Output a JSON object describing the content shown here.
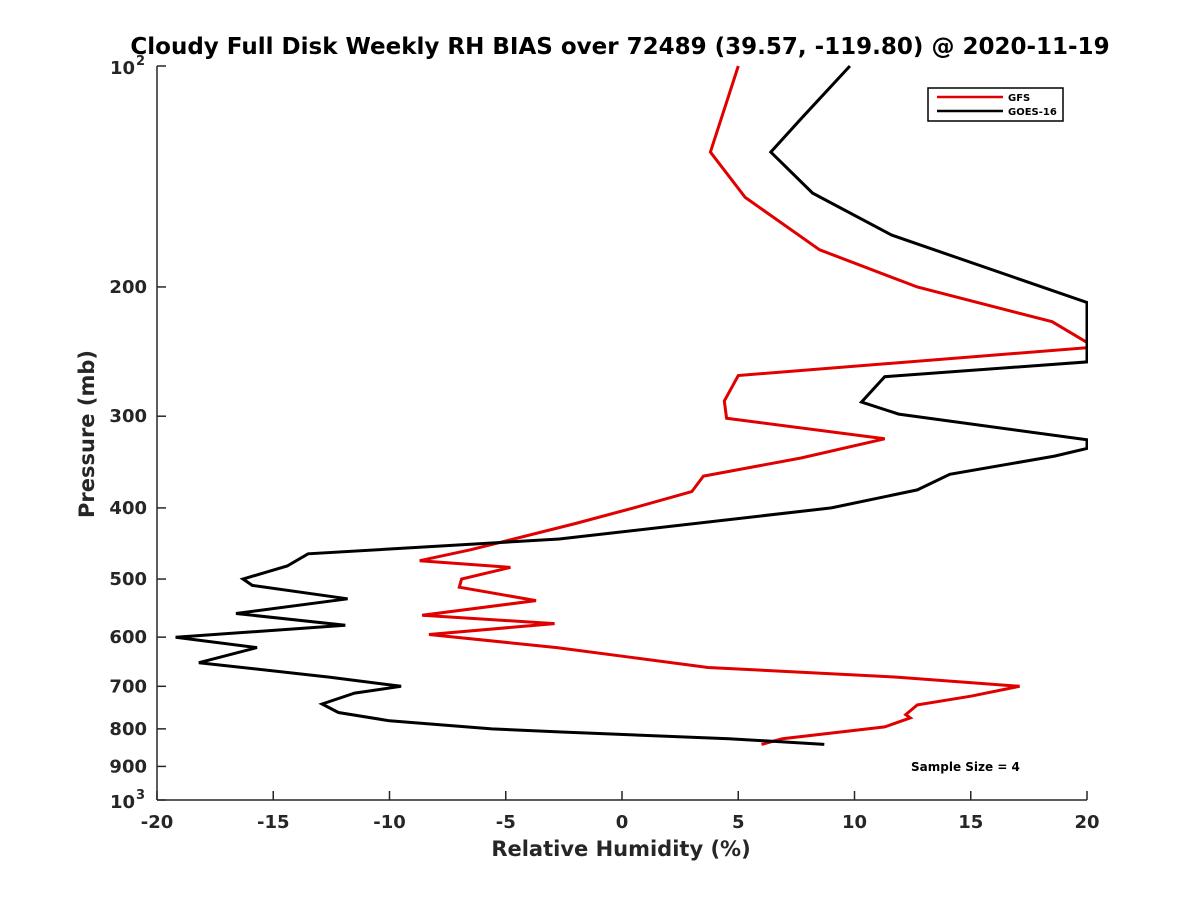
{
  "chart_data": {
    "type": "line",
    "title": "Cloudy Full Disk Weekly RH BIAS over 72489 (39.57, -119.80) @ 2020-11-19",
    "xlabel": "Relative Humidity (%)",
    "ylabel": "Pressure (mb)",
    "xlim": [
      -20,
      20
    ],
    "ylim": [
      100,
      1000
    ],
    "y_scale": "log",
    "y_reversed": true,
    "grid": false,
    "legend_position": "top-right",
    "annotation": "Sample Size = 4",
    "x_ticks": [
      -20,
      -15,
      -10,
      -5,
      0,
      5,
      10,
      15,
      20
    ],
    "x_tick_labels": [
      "-20",
      "-15",
      "-10",
      "-5",
      "0",
      "5",
      "10",
      "15",
      "20"
    ],
    "y_ticks": [
      200,
      300,
      400,
      500,
      600,
      700,
      800,
      900
    ],
    "y_tick_labels": [
      "200",
      "300",
      "400",
      "500",
      "600",
      "700",
      "800",
      "900"
    ],
    "y_minor_ticks": [
      100,
      1000
    ],
    "y_minor_tick_labels": [
      "10",
      "10"
    ],
    "y_minor_tick_exp": [
      "2",
      "3"
    ],
    "series": [
      {
        "name": "GFS",
        "color": "#e00000",
        "points": [
          [
            5.0,
            100
          ],
          [
            3.8,
            131
          ],
          [
            5.3,
            151
          ],
          [
            8.5,
            178
          ],
          [
            12.7,
            200
          ],
          [
            18.5,
            223
          ],
          [
            20.0,
            238
          ],
          [
            20.0,
            242
          ],
          [
            5.0,
            264
          ],
          [
            4.4,
            286
          ],
          [
            4.5,
            302
          ],
          [
            11.3,
            322
          ],
          [
            7.7,
            342
          ],
          [
            3.5,
            362
          ],
          [
            3.0,
            380
          ],
          [
            0.5,
            400
          ],
          [
            -2.0,
            420
          ],
          [
            -6.5,
            456
          ],
          [
            -8.7,
            472
          ],
          [
            -4.8,
            482
          ],
          [
            -6.9,
            500
          ],
          [
            -7.0,
            513
          ],
          [
            -3.7,
            535
          ],
          [
            -8.6,
            560
          ],
          [
            -2.9,
            575
          ],
          [
            -8.3,
            595
          ],
          [
            -2.8,
            620
          ],
          [
            0.5,
            640
          ],
          [
            3.7,
            660
          ],
          [
            11.8,
            680
          ],
          [
            17.1,
            700
          ],
          [
            15.0,
            722
          ],
          [
            12.7,
            742
          ],
          [
            12.2,
            765
          ],
          [
            12.4,
            773
          ],
          [
            11.3,
            795
          ],
          [
            6.9,
            825
          ],
          [
            6.0,
            840
          ]
        ]
      },
      {
        "name": "GOES-16",
        "color": "#000000",
        "points": [
          [
            9.8,
            100
          ],
          [
            7.7,
            118
          ],
          [
            6.4,
            131
          ],
          [
            8.2,
            149
          ],
          [
            11.6,
            170
          ],
          [
            20.0,
            210
          ],
          [
            20.0,
            218
          ],
          [
            20.0,
            248
          ],
          [
            20.0,
            253
          ],
          [
            11.3,
            265
          ],
          [
            10.3,
            287
          ],
          [
            11.9,
            298
          ],
          [
            20.0,
            323
          ],
          [
            20.0,
            332
          ],
          [
            18.6,
            340
          ],
          [
            14.1,
            360
          ],
          [
            12.7,
            378
          ],
          [
            9.0,
            400
          ],
          [
            -2.7,
            441
          ],
          [
            -13.5,
            462
          ],
          [
            -14.4,
            480
          ],
          [
            -16.3,
            500
          ],
          [
            -15.9,
            510
          ],
          [
            -11.8,
            532
          ],
          [
            -16.6,
            557
          ],
          [
            -11.9,
            578
          ],
          [
            -19.2,
            600
          ],
          [
            -15.7,
            620
          ],
          [
            -18.2,
            650
          ],
          [
            -12.6,
            680
          ],
          [
            -9.5,
            700
          ],
          [
            -11.5,
            715
          ],
          [
            -12.9,
            740
          ],
          [
            -12.2,
            760
          ],
          [
            -10.0,
            780
          ],
          [
            -5.6,
            800
          ],
          [
            -2.6,
            808
          ],
          [
            4.6,
            825
          ],
          [
            8.7,
            840
          ]
        ]
      }
    ]
  }
}
